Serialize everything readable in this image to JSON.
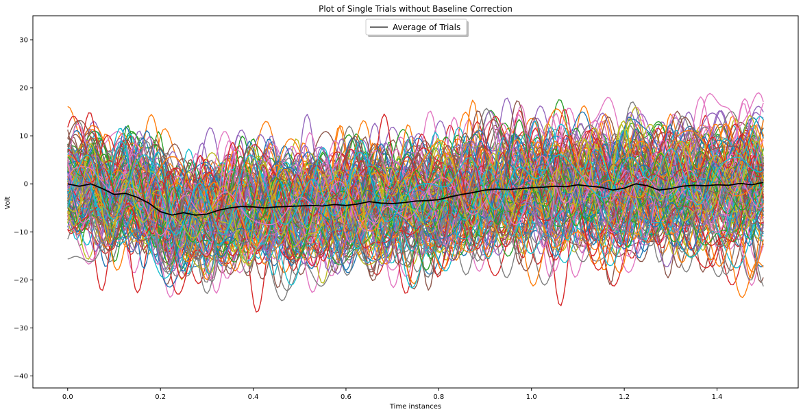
{
  "chart_data": {
    "type": "line",
    "title": "Plot of Single Trials without Baseline Correction",
    "xlabel": "Time instances",
    "ylabel": "Volt",
    "xlim": [
      -0.075,
      1.575
    ],
    "ylim": [
      -42.5,
      35
    ],
    "x_ticks": [
      0.0,
      0.2,
      0.4,
      0.6,
      0.8,
      1.0,
      1.2,
      1.4
    ],
    "x_tick_labels": [
      "0.0",
      "0.2",
      "0.4",
      "0.6",
      "0.8",
      "1.0",
      "1.2",
      "1.4"
    ],
    "y_ticks": [
      -40,
      -30,
      -20,
      -10,
      0,
      10,
      20,
      30
    ],
    "y_tick_labels": [
      "−40",
      "−30",
      "−20",
      "−10",
      "0",
      "10",
      "20",
      "30"
    ],
    "grid": false,
    "legend": {
      "position": "top-center",
      "entries": [
        {
          "name": "Average of Trials",
          "color": "#000000"
        }
      ]
    },
    "trial_colors": [
      "#1f77b4",
      "#ff7f0e",
      "#2ca02c",
      "#d62728",
      "#9467bd",
      "#8c564b",
      "#e377c2",
      "#7f7f7f",
      "#bcbd22",
      "#17becf"
    ],
    "series": [
      {
        "name": "Average of Trials",
        "color": "#000000",
        "x": [
          0.0,
          0.025,
          0.05,
          0.075,
          0.1,
          0.125,
          0.15,
          0.175,
          0.2,
          0.225,
          0.25,
          0.275,
          0.3,
          0.325,
          0.35,
          0.375,
          0.4,
          0.425,
          0.45,
          0.475,
          0.5,
          0.525,
          0.55,
          0.575,
          0.6,
          0.625,
          0.65,
          0.675,
          0.7,
          0.725,
          0.75,
          0.775,
          0.8,
          0.825,
          0.85,
          0.875,
          0.9,
          0.925,
          0.95,
          0.975,
          1.0,
          1.025,
          1.05,
          1.075,
          1.1,
          1.125,
          1.15,
          1.175,
          1.2,
          1.225,
          1.25,
          1.275,
          1.3,
          1.325,
          1.35,
          1.375,
          1.4,
          1.425,
          1.45,
          1.475,
          1.5
        ],
        "y": [
          0.0,
          -0.5,
          0.0,
          -1.0,
          -2.2,
          -2.0,
          -2.8,
          -4.0,
          -5.8,
          -6.5,
          -6.0,
          -6.5,
          -6.3,
          -5.5,
          -5.0,
          -4.7,
          -4.8,
          -5.0,
          -4.8,
          -4.7,
          -4.6,
          -4.5,
          -4.6,
          -4.3,
          -4.5,
          -4.2,
          -3.7,
          -4.0,
          -4.1,
          -3.9,
          -3.6,
          -3.5,
          -3.3,
          -2.7,
          -2.2,
          -1.8,
          -1.3,
          -1.1,
          -1.2,
          -1.0,
          -0.8,
          -0.7,
          -0.5,
          -0.6,
          -0.2,
          -0.5,
          -0.7,
          -1.3,
          -0.9,
          0.0,
          -0.4,
          -1.3,
          -1.0,
          -0.5,
          -0.3,
          -0.4,
          -0.2,
          -0.3,
          0.1,
          -0.2,
          0.3
        ]
      }
    ]
  }
}
